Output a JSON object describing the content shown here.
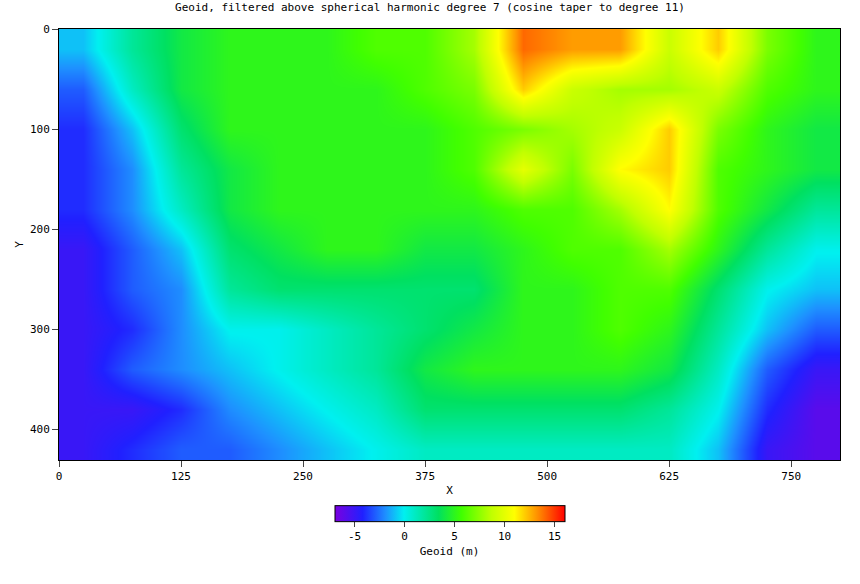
{
  "chart_data": {
    "type": "heatmap",
    "title": "Geoid, filtered above spherical harmonic degree 7 (cosine taper to degree 11)",
    "x_label": "X",
    "y_label": "Y",
    "x": [
      25,
      75,
      125,
      175,
      225,
      275,
      325,
      375,
      425,
      475,
      525,
      575,
      625,
      675,
      725,
      775
    ],
    "y": [
      20,
      60,
      100,
      140,
      180,
      220,
      260,
      300,
      340,
      380,
      420
    ],
    "z": [
      [
        -1,
        2,
        4,
        5,
        5,
        5,
        6,
        6,
        8,
        14,
        13,
        13,
        9,
        12,
        7,
        5
      ],
      [
        -3,
        1,
        4,
        5,
        5,
        5,
        5,
        6,
        7,
        12,
        9,
        8,
        8,
        9,
        6,
        5
      ],
      [
        -4,
        -1,
        3,
        5,
        5,
        5,
        5,
        5,
        6,
        7,
        8,
        9,
        12,
        7,
        5,
        4
      ],
      [
        -4,
        -2,
        2,
        4,
        5,
        5,
        5,
        5,
        6,
        10,
        7,
        11,
        12,
        6,
        5,
        4
      ],
      [
        -4,
        -2,
        1,
        4,
        5,
        5,
        5,
        5,
        5,
        6,
        6,
        8,
        11,
        6,
        4,
        2
      ],
      [
        -5,
        -3,
        -1,
        3,
        4,
        5,
        5,
        4,
        4,
        5,
        6,
        6,
        8,
        5,
        2,
        0
      ],
      [
        -5,
        -3,
        -2,
        2,
        3,
        3,
        3,
        3,
        3,
        5,
        5,
        6,
        6,
        3,
        0,
        -1
      ],
      [
        -5,
        -4,
        -2,
        0,
        0,
        1,
        2,
        3,
        4,
        5,
        5,
        6,
        5,
        2,
        -1,
        -3
      ],
      [
        -5,
        -3,
        -2,
        -1,
        0,
        1,
        2,
        4,
        5,
        5,
        5,
        5,
        4,
        1,
        -3,
        -5
      ],
      [
        -5,
        -5,
        -4,
        -2,
        -1,
        0,
        1,
        3,
        3,
        3,
        3,
        3,
        2,
        0,
        -4,
        -6
      ],
      [
        -5,
        -4,
        -3,
        -3,
        -2,
        -1,
        0,
        1,
        1,
        1,
        1,
        1,
        1,
        -1,
        -5,
        -6
      ]
    ],
    "xlim": [
      0,
      800
    ],
    "ylim": [
      431,
      0
    ],
    "xticks": [
      0,
      125,
      250,
      375,
      500,
      625,
      750
    ],
    "yticks": [
      0,
      100,
      200,
      300,
      400
    ],
    "colorbar": {
      "title": "Geoid (m)",
      "range": [
        -7,
        16
      ],
      "ticks": [
        -5,
        0,
        5,
        10,
        15
      ]
    }
  }
}
